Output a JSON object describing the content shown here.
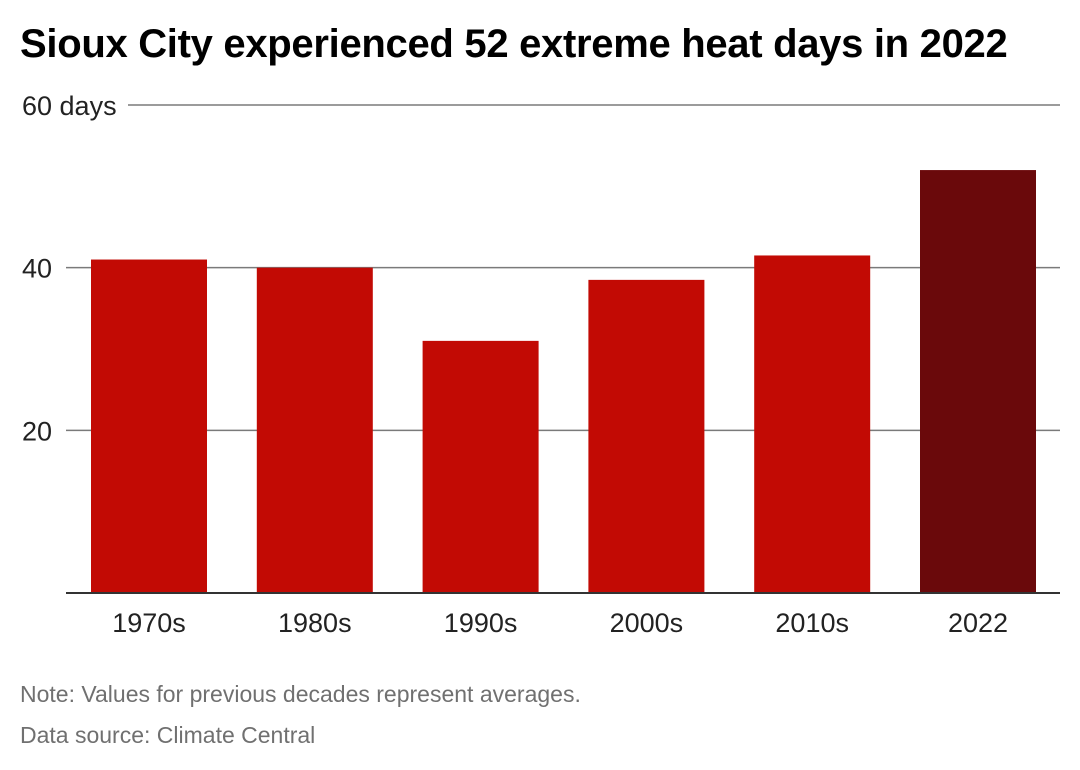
{
  "title": "Sioux City experienced 52 extreme heat days in 2022",
  "notes": {
    "note": "Note: Values for previous decades represent averages.",
    "source": "Data source: Climate Central"
  },
  "colors": {
    "bar": "#c20a04",
    "bar_highlight": "#6a090b",
    "grid": "#7a7a7a",
    "axis": "#333333"
  },
  "chart_data": {
    "type": "bar",
    "title": "Sioux City experienced 52 extreme heat days in 2022",
    "categories": [
      "1970s",
      "1980s",
      "1990s",
      "2000s",
      "2010s",
      "2022"
    ],
    "values": [
      41,
      40,
      31,
      38.5,
      41.5,
      52
    ],
    "highlight_category": "2022",
    "ylim": [
      0,
      60
    ],
    "yticks": [
      20,
      40,
      60
    ],
    "ytick_labels": [
      "20",
      "40",
      "60 days"
    ],
    "grid": true,
    "xlabel": "",
    "ylabel": ""
  }
}
